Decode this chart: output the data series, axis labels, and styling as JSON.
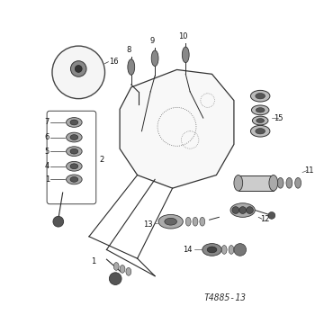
{
  "figure_id": "T4885-13",
  "bg_color": "#ffffff",
  "line_color": "#2a2a2a",
  "figsize": [
    3.5,
    3.5
  ],
  "dpi": 100,
  "label_fontsize": 6.0,
  "annotation_color": "#111111",
  "figure_label_fontsize": 7.0
}
